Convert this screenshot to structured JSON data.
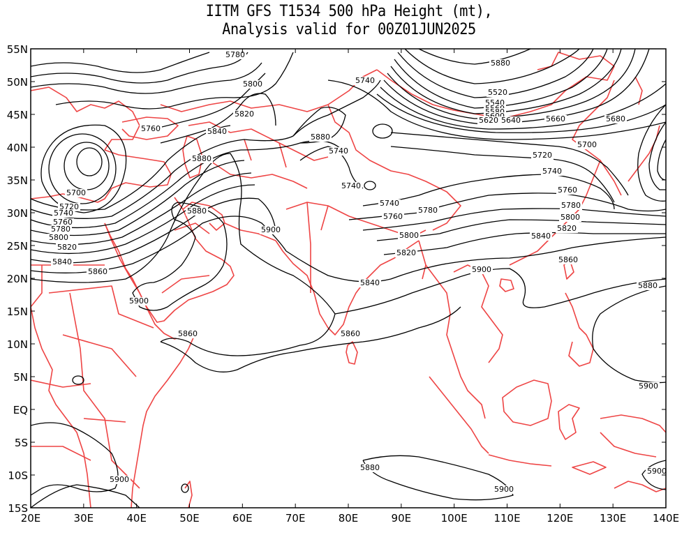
{
  "title": {
    "line1": "IITM GFS T1534 500 hPa Height (mt),",
    "line2": "Analysis valid for 00Z01JUN2025"
  },
  "colors": {
    "contour": "#000000",
    "coastline": "#ee4444",
    "frame": "#000000"
  },
  "axes": {
    "lon_labels": [
      "20E",
      "30E",
      "40E",
      "50E",
      "60E",
      "70E",
      "80E",
      "90E",
      "100E",
      "110E",
      "120E",
      "130E",
      "140E"
    ],
    "lat_labels": [
      "55N",
      "50N",
      "45N",
      "40N",
      "35N",
      "30N",
      "25N",
      "20N",
      "15N",
      "10N",
      "5N",
      "EQ",
      "5S",
      "10S",
      "15S"
    ]
  },
  "contour_labels": [
    "5780",
    "5800",
    "5820",
    "5840",
    "5760",
    "5880",
    "5700",
    "5720",
    "5740",
    "5760",
    "5780",
    "5800",
    "5820",
    "5840",
    "5860",
    "5880",
    "5900",
    "5900",
    "5860",
    "5880",
    "5740",
    "5740",
    "5740",
    "5740",
    "5760",
    "5780",
    "5800",
    "5820",
    "5840",
    "5860",
    "5880",
    "5520",
    "5540",
    "5560",
    "5580",
    "5600",
    "5620",
    "5640",
    "5660",
    "5680",
    "5700",
    "5720",
    "5740",
    "5760",
    "5780",
    "5800",
    "5820",
    "5840",
    "5860",
    "5880",
    "5900",
    "5900",
    "5900",
    "5900",
    "5900",
    "5900",
    "5880",
    "5900"
  ]
}
